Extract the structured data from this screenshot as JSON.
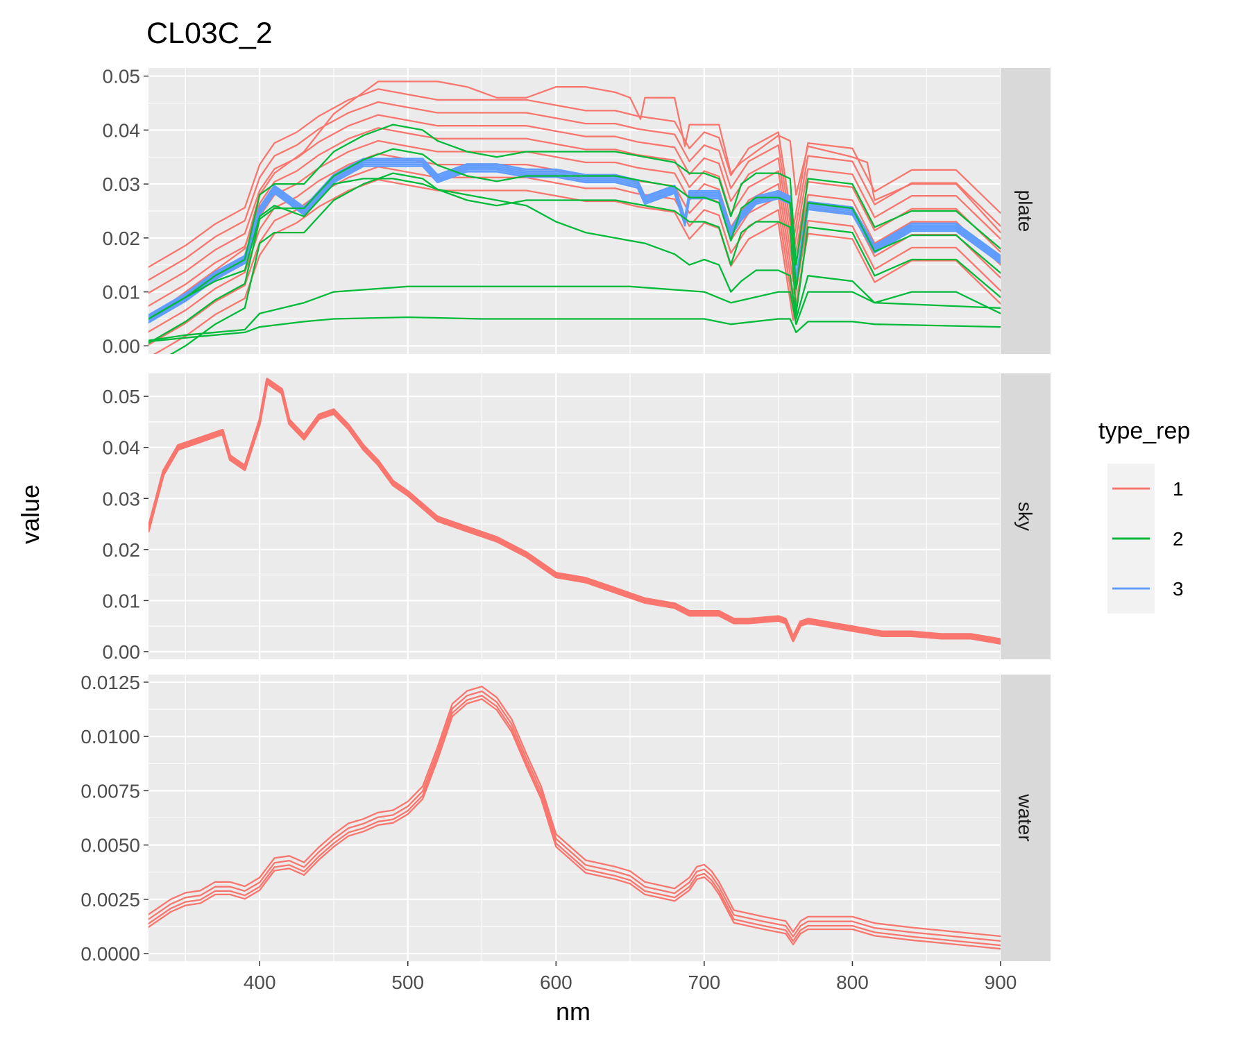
{
  "chart_data": {
    "type": "line",
    "title": "CL03C_2",
    "xlabel": "nm",
    "ylabel": "value",
    "xlim": [
      325,
      900
    ],
    "x_ticks": [
      400,
      500,
      600,
      700,
      800,
      900
    ],
    "x_tick_labels": [
      "400",
      "500",
      "600",
      "700",
      "800",
      "900"
    ],
    "x_minor_ticks": [
      350,
      450,
      550,
      650,
      750,
      850
    ],
    "grid": true,
    "legend": {
      "title": "type_rep",
      "placement": "right",
      "entries": [
        {
          "label": "1",
          "color": "#F8766D"
        },
        {
          "label": "2",
          "color": "#00BA38"
        },
        {
          "label": "3",
          "color": "#619CFF"
        }
      ]
    },
    "facets": [
      {
        "label": "plate",
        "ylim": [
          -0.0015,
          0.0515
        ],
        "y_ticks": [
          0,
          0.01,
          0.02,
          0.03,
          0.04,
          0.05
        ],
        "y_tick_labels": [
          "0.00",
          "0.01",
          "0.02",
          "0.03",
          "0.04",
          "0.05"
        ],
        "series": [
          {
            "name": "1",
            "color": "#F8766D",
            "x": [
              325,
              350,
              370,
              390,
              400,
              410,
              425,
              440,
              460,
              480,
              500,
              520,
              540,
              560,
              580,
              600,
              620,
              640,
              655,
              680,
              690,
              700,
              710,
              718,
              730,
              750,
              760,
              770,
              800,
              815,
              840,
              870,
              900
            ],
            "y": [
              0.005,
              0.009,
              0.013,
              0.016,
              0.024,
              0.028,
              0.03,
              0.033,
              0.036,
              0.038,
              0.037,
              0.036,
              0.036,
              0.036,
              0.036,
              0.035,
              0.034,
              0.034,
              0.033,
              0.032,
              0.027,
              0.03,
              0.029,
              0.022,
              0.027,
              0.03,
              0.012,
              0.028,
              0.027,
              0.019,
              0.023,
              0.023,
              0.015
            ],
            "band": [
              -0.0072,
              -0.0048,
              -0.0024,
              0,
              0.0024,
              0.0048,
              0.0072,
              0.0096
            ]
          },
          {
            "name": "1",
            "color": "#F8766D",
            "x": [
              325,
              350,
              370,
              390,
              400,
              410,
              430,
              450,
              470,
              480,
              500,
              520,
              540,
              560,
              570,
              580,
              600,
              620,
              640,
              650,
              657,
              660,
              680,
              687,
              690,
              700,
              710,
              718,
              725,
              735,
              750,
              758,
              762,
              770,
              800,
              810,
              815,
              840,
              870,
              900
            ],
            "y": [
              0.005,
              0.01,
              0.014,
              0.018,
              0.028,
              0.032,
              0.036,
              0.043,
              0.047,
              0.049,
              0.049,
              0.049,
              0.048,
              0.046,
              0.046,
              0.046,
              0.048,
              0.048,
              0.047,
              0.046,
              0.042,
              0.046,
              0.046,
              0.037,
              0.041,
              0.041,
              0.041,
              0.032,
              0.034,
              0.036,
              0.039,
              0.038,
              0.028,
              0.037,
              0.035,
              0.034,
              0.027,
              0.03,
              0.03,
              0.021
            ]
          },
          {
            "name": "3",
            "color": "#619CFF",
            "width": 2.6,
            "x": [
              325,
              350,
              370,
              390,
              400,
              410,
              430,
              450,
              470,
              490,
              510,
              520,
              540,
              560,
              580,
              600,
              620,
              640,
              655,
              660,
              680,
              687,
              690,
              700,
              710,
              718,
              725,
              735,
              750,
              758,
              762,
              770,
              800,
              815,
              840,
              870,
              900
            ],
            "y": [
              0.005,
              0.009,
              0.013,
              0.016,
              0.025,
              0.029,
              0.025,
              0.031,
              0.034,
              0.034,
              0.034,
              0.031,
              0.033,
              0.033,
              0.032,
              0.032,
              0.031,
              0.031,
              0.03,
              0.027,
              0.029,
              0.023,
              0.028,
              0.028,
              0.028,
              0.021,
              0.024,
              0.027,
              0.028,
              0.027,
              0.012,
              0.026,
              0.025,
              0.018,
              0.022,
              0.022,
              0.016
            ],
            "band": [
              -0.0007,
              -0.00035,
              0,
              0.00035,
              0.0007
            ]
          },
          {
            "name": "2",
            "color": "#00BA38",
            "x": [
              325,
              350,
              370,
              390,
              400,
              410,
              430,
              450,
              470,
              490,
              510,
              520,
              540,
              560,
              580,
              600,
              620,
              640,
              660,
              680,
              690,
              700,
              710,
              718,
              725,
              735,
              750,
              758,
              762,
              770,
              800,
              815,
              840,
              870,
              900
            ],
            "y": [
              0.005,
              0.009,
              0.013,
              0.016,
              0.028,
              0.03,
              0.03,
              0.036,
              0.039,
              0.041,
              0.04,
              0.038,
              0.036,
              0.035,
              0.036,
              0.036,
              0.036,
              0.036,
              0.035,
              0.034,
              0.032,
              0.032,
              0.031,
              0.024,
              0.03,
              0.032,
              0.032,
              0.031,
              0.015,
              0.031,
              0.03,
              0.022,
              0.025,
              0.025,
              0.018
            ],
            "band": [
              -0.009,
              -0.0045,
              0
            ]
          },
          {
            "name": "2",
            "color": "#00BA38",
            "x": [
              325,
              350,
              370,
              390,
              400,
              410,
              430,
              450,
              470,
              490,
              510,
              520,
              540,
              560,
              580,
              600,
              620,
              640,
              660,
              680,
              690,
              700,
              710,
              718,
              725,
              735,
              750,
              758,
              762,
              770,
              800,
              815,
              840,
              870,
              900
            ],
            "y": [
              0.005,
              0.009,
              0.012,
              0.014,
              0.024,
              0.026,
              0.024,
              0.03,
              0.031,
              0.031,
              0.03,
              0.029,
              0.028,
              0.027,
              0.026,
              0.023,
              0.021,
              0.02,
              0.019,
              0.017,
              0.015,
              0.016,
              0.015,
              0.01,
              0.012,
              0.014,
              0.014,
              0.013,
              0.005,
              0.013,
              0.012,
              0.008,
              0.01,
              0.01,
              0.006
            ]
          },
          {
            "name": "2",
            "color": "#00BA38",
            "x": [
              325,
              350,
              390,
              400,
              430,
              450,
              500,
              550,
              600,
              650,
              700,
              718,
              750,
              758,
              762,
              770,
              800,
              815,
              900
            ],
            "y": [
              0.001,
              0.002,
              0.003,
              0.006,
              0.008,
              0.01,
              0.011,
              0.011,
              0.011,
              0.011,
              0.01,
              0.008,
              0.01,
              0.01,
              0.004,
              0.01,
              0.01,
              0.008,
              0.007
            ]
          },
          {
            "name": "2",
            "color": "#00BA38",
            "x": [
              325,
              350,
              390,
              400,
              430,
              450,
              500,
              550,
              600,
              650,
              700,
              718,
              750,
              758,
              762,
              770,
              800,
              815,
              900
            ],
            "y": [
              0.0008,
              0.0015,
              0.0025,
              0.0035,
              0.0045,
              0.005,
              0.0053,
              0.005,
              0.005,
              0.005,
              0.005,
              0.004,
              0.005,
              0.005,
              0.0025,
              0.0045,
              0.0045,
              0.004,
              0.0035
            ]
          }
        ]
      },
      {
        "label": "sky",
        "ylim": [
          -0.0015,
          0.0545
        ],
        "y_ticks": [
          0,
          0.01,
          0.02,
          0.03,
          0.04,
          0.05
        ],
        "y_tick_labels": [
          "0.00",
          "0.01",
          "0.02",
          "0.03",
          "0.04",
          "0.05"
        ],
        "series": [
          {
            "name": "1",
            "color": "#F8766D",
            "width": 3.5,
            "x": [
              325,
              335,
              345,
              355,
              365,
              375,
              380,
              390,
              400,
              405,
              415,
              420,
              430,
              440,
              450,
              460,
              470,
              480,
              490,
              500,
              520,
              540,
              560,
              580,
              600,
              620,
              640,
              660,
              680,
              690,
              700,
              710,
              720,
              730,
              750,
              755,
              760,
              765,
              770,
              790,
              800,
              820,
              840,
              860,
              880,
              900
            ],
            "y": [
              0.024,
              0.035,
              0.04,
              0.041,
              0.042,
              0.043,
              0.038,
              0.036,
              0.045,
              0.053,
              0.051,
              0.045,
              0.042,
              0.046,
              0.047,
              0.044,
              0.04,
              0.037,
              0.033,
              0.031,
              0.026,
              0.024,
              0.022,
              0.019,
              0.015,
              0.014,
              0.012,
              0.01,
              0.009,
              0.0075,
              0.0075,
              0.0075,
              0.006,
              0.006,
              0.0065,
              0.006,
              0.0025,
              0.0055,
              0.006,
              0.005,
              0.0045,
              0.0035,
              0.0035,
              0.003,
              0.003,
              0.002
            ],
            "band": [
              -0.0004,
              0,
              0.0004
            ]
          }
        ]
      },
      {
        "label": "water",
        "ylim": [
          -0.00035,
          0.01285
        ],
        "y_ticks": [
          0,
          0.0025,
          0.005,
          0.0075,
          0.01,
          0.0125
        ],
        "y_tick_labels": [
          "0.0000",
          "0.0025",
          "0.0050",
          "0.0075",
          "0.0100",
          "0.0125"
        ],
        "series": [
          {
            "name": "1",
            "color": "#F8766D",
            "x": [
              325,
              340,
              350,
              360,
              370,
              380,
              390,
              400,
              410,
              420,
              430,
              440,
              450,
              460,
              470,
              480,
              490,
              500,
              510,
              520,
              530,
              540,
              550,
              560,
              570,
              580,
              590,
              600,
              620,
              640,
              650,
              660,
              680,
              690,
              695,
              700,
              705,
              710,
              720,
              740,
              755,
              760,
              765,
              770,
              800,
              815,
              840,
              870,
              900
            ],
            "y": [
              0.0013,
              0.002,
              0.0023,
              0.0024,
              0.0028,
              0.0028,
              0.0026,
              0.003,
              0.0039,
              0.004,
              0.0037,
              0.0044,
              0.005,
              0.0055,
              0.0057,
              0.006,
              0.0061,
              0.0065,
              0.0072,
              0.009,
              0.011,
              0.0116,
              0.0118,
              0.0113,
              0.0103,
              0.0087,
              0.0072,
              0.005,
              0.0038,
              0.0035,
              0.0033,
              0.0028,
              0.0025,
              0.003,
              0.0035,
              0.0036,
              0.0033,
              0.0028,
              0.0015,
              0.0012,
              0.001,
              0.0005,
              0.001,
              0.0012,
              0.0012,
              0.0009,
              0.0007,
              0.0005,
              0.0003
            ],
            "band": [
              -8e-05,
              8e-05,
              0.00028,
              0.0005
            ]
          }
        ]
      }
    ]
  }
}
